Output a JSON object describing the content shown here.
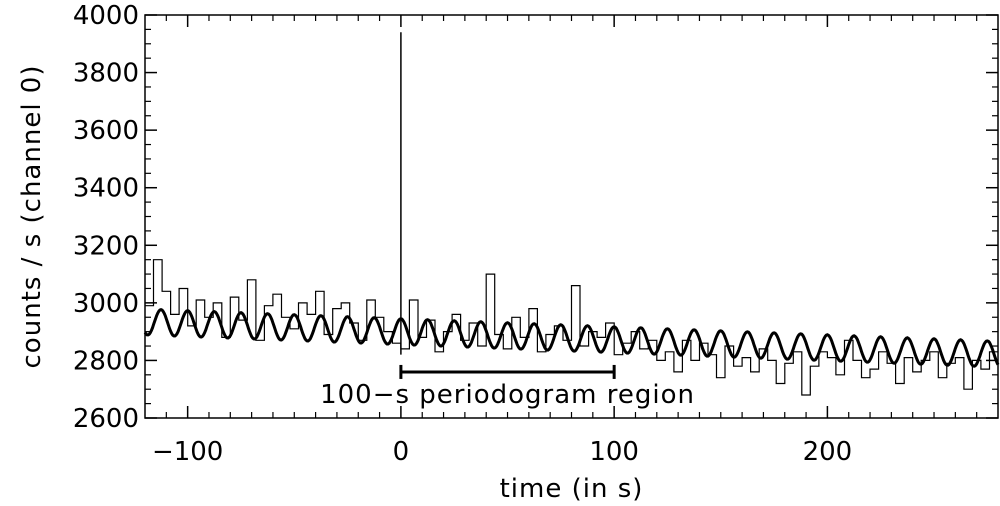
{
  "chart_data": {
    "type": "line",
    "title": "",
    "xlabel": "time (in s)",
    "ylabel": "counts / s (channel 0)",
    "xlim": [
      -120,
      280
    ],
    "ylim": [
      2600,
      4000
    ],
    "x_ticks": [
      -100,
      0,
      100,
      200
    ],
    "y_ticks": [
      2600,
      2800,
      3000,
      3200,
      3400,
      3600,
      3800,
      4000
    ],
    "grid": false,
    "annotations": [
      {
        "text": "100−s periodogram region",
        "x_start": 0,
        "x_end": 100,
        "y": 2760
      }
    ],
    "series": [
      {
        "style": "step",
        "x": [
          -120,
          -116,
          -112,
          -108,
          -104,
          -100,
          -96,
          -92,
          -88,
          -84,
          -80,
          -76,
          -72,
          -68,
          -64,
          -60,
          -56,
          -52,
          -48,
          -44,
          -40,
          -36,
          -32,
          -28,
          -24,
          -20,
          -16,
          -12,
          -8,
          -4,
          0,
          4,
          8,
          12,
          16,
          20,
          24,
          28,
          32,
          36,
          40,
          44,
          48,
          52,
          56,
          60,
          64,
          68,
          72,
          76,
          80,
          84,
          88,
          92,
          96,
          100,
          104,
          108,
          112,
          116,
          120,
          124,
          128,
          132,
          136,
          140,
          144,
          148,
          152,
          156,
          160,
          164,
          168,
          172,
          176,
          180,
          184,
          188,
          192,
          196,
          200,
          204,
          208,
          212,
          216,
          220,
          224,
          228,
          232,
          236,
          240,
          244,
          248,
          252,
          256,
          260,
          264,
          268,
          272,
          276
        ],
        "y": [
          2990,
          3150,
          3040,
          2960,
          3050,
          2920,
          3010,
          2950,
          3000,
          2880,
          3020,
          2940,
          3080,
          2870,
          2990,
          3030,
          2950,
          2910,
          3000,
          2960,
          3040,
          2890,
          2980,
          3000,
          2930,
          2870,
          3010,
          2950,
          2900,
          2860,
          2840,
          3010,
          2880,
          2940,
          2830,
          2900,
          2960,
          2870,
          2930,
          2850,
          3100,
          2890,
          2840,
          2950,
          2880,
          2980,
          2830,
          2890,
          2920,
          2870,
          3060,
          2850,
          2900,
          2880,
          2930,
          2820,
          2860,
          2900,
          2840,
          2870,
          2800,
          2830,
          2760,
          2870,
          2800,
          2860,
          2820,
          2740,
          2850,
          2780,
          2810,
          2760,
          2840,
          2800,
          2720,
          2790,
          2830,
          2680,
          2780,
          2830,
          2810,
          2750,
          2870,
          2800,
          2740,
          2770,
          2830,
          2790,
          2720,
          2810,
          2760,
          2800,
          2830,
          2740,
          2790,
          2810,
          2700,
          2800,
          2770,
          2830
        ]
      },
      {
        "style": "line",
        "offset": 2900,
        "slope": -0.28,
        "amplitude": 45,
        "period": 12.5
      }
    ],
    "spike": {
      "x": 0,
      "y": 3940
    }
  }
}
